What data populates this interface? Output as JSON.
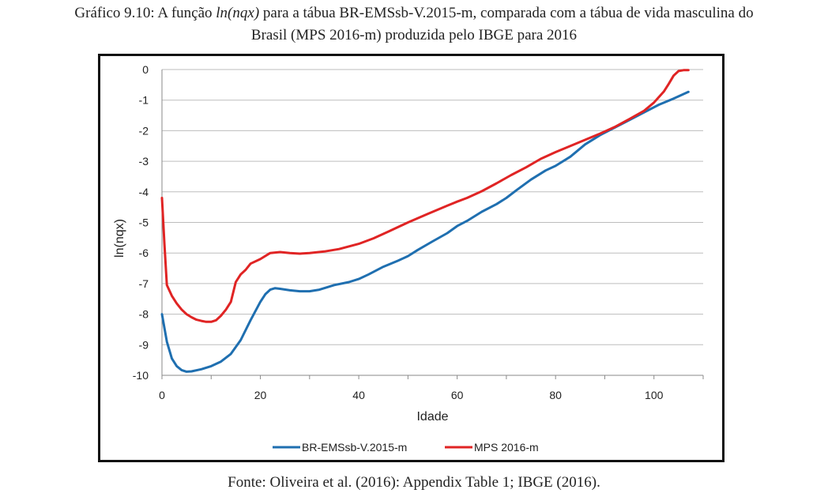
{
  "caption": {
    "prefix": "Gráfico 9.10: A função ",
    "italic": "ln(nqx)",
    "suffix": " para a tábua BR-EMSsb-V.2015-m, comparada com a tábua de vida masculina do",
    "line2": "Brasil (MPS 2016-m) produzida pelo IBGE para 2016"
  },
  "source": "Fonte: Oliveira et al. (2016): Appendix Table 1; IBGE (2016).",
  "chart_data": {
    "type": "line",
    "xlabel": "Idade",
    "ylabel": "ln(nqx)",
    "xlim": [
      0,
      110
    ],
    "ylim": [
      -10,
      0
    ],
    "x_ticks": [
      0,
      20,
      40,
      60,
      80,
      100
    ],
    "y_ticks": [
      0,
      -1,
      -2,
      -3,
      -4,
      -5,
      -6,
      -7,
      -8,
      -9,
      -10
    ],
    "grid": "horizontal",
    "legend_position": "bottom",
    "series": [
      {
        "name": "BR-EMSsb-V.2015-m",
        "color": "#1f6fb0",
        "points": [
          [
            0,
            -8.0
          ],
          [
            1,
            -8.9
          ],
          [
            2,
            -9.45
          ],
          [
            3,
            -9.7
          ],
          [
            4,
            -9.83
          ],
          [
            5,
            -9.88
          ],
          [
            6,
            -9.87
          ],
          [
            8,
            -9.8
          ],
          [
            10,
            -9.7
          ],
          [
            12,
            -9.55
          ],
          [
            14,
            -9.3
          ],
          [
            16,
            -8.85
          ],
          [
            18,
            -8.2
          ],
          [
            20,
            -7.6
          ],
          [
            21,
            -7.35
          ],
          [
            22,
            -7.2
          ],
          [
            23,
            -7.15
          ],
          [
            24,
            -7.17
          ],
          [
            26,
            -7.22
          ],
          [
            28,
            -7.25
          ],
          [
            30,
            -7.25
          ],
          [
            32,
            -7.2
          ],
          [
            35,
            -7.05
          ],
          [
            38,
            -6.95
          ],
          [
            40,
            -6.85
          ],
          [
            42,
            -6.7
          ],
          [
            45,
            -6.45
          ],
          [
            48,
            -6.25
          ],
          [
            50,
            -6.1
          ],
          [
            52,
            -5.9
          ],
          [
            55,
            -5.62
          ],
          [
            58,
            -5.35
          ],
          [
            60,
            -5.12
          ],
          [
            62,
            -4.95
          ],
          [
            65,
            -4.65
          ],
          [
            68,
            -4.4
          ],
          [
            70,
            -4.2
          ],
          [
            72,
            -3.95
          ],
          [
            75,
            -3.6
          ],
          [
            78,
            -3.3
          ],
          [
            80,
            -3.15
          ],
          [
            83,
            -2.85
          ],
          [
            86,
            -2.45
          ],
          [
            89,
            -2.15
          ],
          [
            92,
            -1.9
          ],
          [
            95,
            -1.65
          ],
          [
            98,
            -1.4
          ],
          [
            101,
            -1.15
          ],
          [
            104,
            -0.95
          ],
          [
            107,
            -0.73
          ]
        ]
      },
      {
        "name": "MPS 2016-m",
        "color": "#e02424",
        "points": [
          [
            0,
            -4.2
          ],
          [
            0.5,
            -5.7
          ],
          [
            1,
            -7.05
          ],
          [
            2,
            -7.4
          ],
          [
            3,
            -7.65
          ],
          [
            4,
            -7.85
          ],
          [
            5,
            -8.0
          ],
          [
            6,
            -8.1
          ],
          [
            7,
            -8.18
          ],
          [
            8,
            -8.22
          ],
          [
            9,
            -8.25
          ],
          [
            10,
            -8.25
          ],
          [
            11,
            -8.2
          ],
          [
            12,
            -8.05
          ],
          [
            13,
            -7.85
          ],
          [
            14,
            -7.6
          ],
          [
            15,
            -6.95
          ],
          [
            16,
            -6.7
          ],
          [
            17,
            -6.55
          ],
          [
            18,
            -6.35
          ],
          [
            20,
            -6.2
          ],
          [
            22,
            -6.0
          ],
          [
            24,
            -5.97
          ],
          [
            26,
            -6.0
          ],
          [
            28,
            -6.02
          ],
          [
            30,
            -6.0
          ],
          [
            33,
            -5.95
          ],
          [
            36,
            -5.87
          ],
          [
            40,
            -5.7
          ],
          [
            43,
            -5.52
          ],
          [
            46,
            -5.3
          ],
          [
            50,
            -5.0
          ],
          [
            54,
            -4.72
          ],
          [
            58,
            -4.45
          ],
          [
            60,
            -4.32
          ],
          [
            62,
            -4.2
          ],
          [
            65,
            -3.98
          ],
          [
            68,
            -3.72
          ],
          [
            71,
            -3.45
          ],
          [
            74,
            -3.2
          ],
          [
            77,
            -2.92
          ],
          [
            80,
            -2.7
          ],
          [
            83,
            -2.5
          ],
          [
            86,
            -2.3
          ],
          [
            89,
            -2.1
          ],
          [
            92,
            -1.88
          ],
          [
            95,
            -1.62
          ],
          [
            98,
            -1.35
          ],
          [
            100,
            -1.08
          ],
          [
            102,
            -0.72
          ],
          [
            103,
            -0.47
          ],
          [
            104,
            -0.2
          ],
          [
            105,
            -0.05
          ],
          [
            106,
            -0.02
          ],
          [
            107,
            -0.02
          ]
        ]
      }
    ]
  }
}
